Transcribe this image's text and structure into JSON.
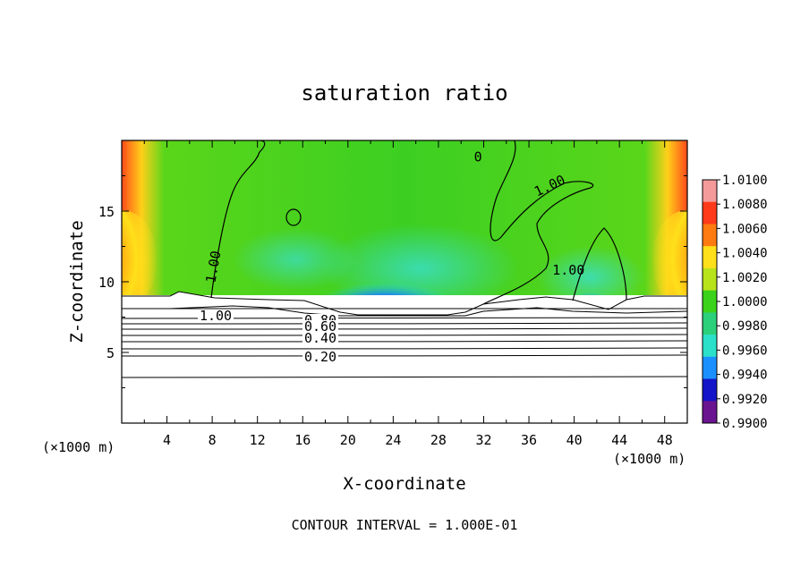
{
  "chart_data": {
    "type": "heatmap",
    "title": "saturation ratio",
    "xlabel": "X-coordinate",
    "ylabel": "Z-coordinate",
    "x_unit_label": "(×1000 m)",
    "z_unit_label": "(×1000 m)",
    "footer": "CONTOUR INTERVAL = 1.000E-01",
    "xlim": [
      0,
      50
    ],
    "ylim": [
      0,
      20
    ],
    "x_ticks": [
      4,
      8,
      12,
      16,
      20,
      24,
      28,
      32,
      36,
      40,
      44,
      48
    ],
    "y_ticks": [
      5,
      10,
      15
    ],
    "colorbar": {
      "min": 0.99,
      "max": 1.01,
      "labels": [
        "1.0100",
        "1.0080",
        "1.0060",
        "1.0040",
        "1.0020",
        "1.0000",
        "0.9980",
        "0.9960",
        "0.9940",
        "0.9920",
        "0.9900"
      ],
      "colors": [
        "#f49a9a",
        "#ff3a1a",
        "#ff7a10",
        "#ffe01a",
        "#b8e21a",
        "#3ad21a",
        "#2ad07a",
        "#2ae0c8",
        "#1a90ff",
        "#1414c8",
        "#6a1490"
      ]
    },
    "contours": [
      {
        "label": "1.00",
        "z": 8.2
      },
      {
        "label": "0.80",
        "z": 7.4
      },
      {
        "label": "0.60",
        "z": 6.8
      },
      {
        "label": "0.40",
        "z": 6.1
      },
      {
        "label": "0.20",
        "z": 4.9
      }
    ],
    "contour_labels_upper": [
      {
        "label": "1.00",
        "x": 8.5,
        "z": 11.0
      },
      {
        "label": "1.00",
        "x": 38.0,
        "z": 16.5
      },
      {
        "label": "1.00",
        "x": 39.5,
        "z": 10.5
      },
      {
        "label": "0",
        "x": 31.5,
        "z": 18.5
      }
    ],
    "grid": false
  }
}
